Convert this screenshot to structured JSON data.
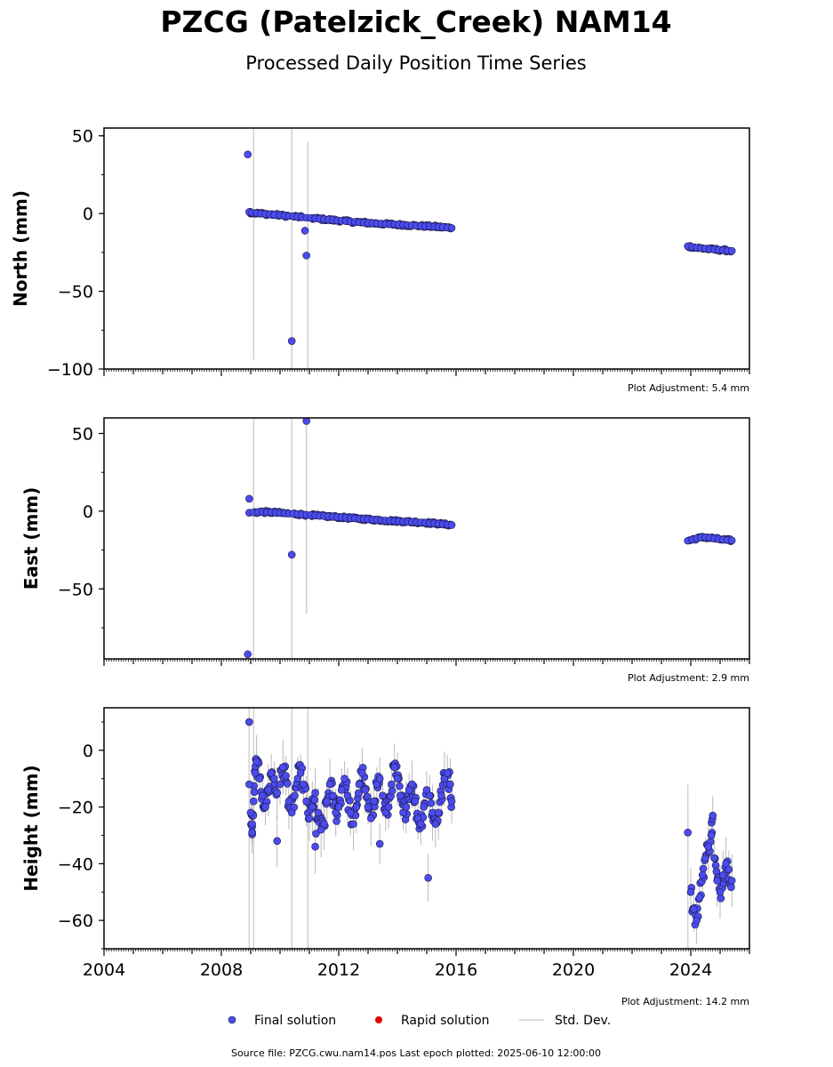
{
  "title": "PZCG (Patelzick_Creek) NAM14",
  "subtitle": "Processed Daily Position Time Series",
  "legend": {
    "final": "Final solution",
    "rapid": "Rapid solution",
    "stddev": "Std. Dev."
  },
  "footer": "Source file: PZCG.cwu.nam14.pos  Last epoch plotted: 2025-06-10 12:00:00",
  "colors": {
    "final": "#4b4bf0",
    "final_edge": "#1a1a40",
    "rapid": "#e00000",
    "stddev": "#b0b0b0"
  },
  "chart_data": [
    {
      "type": "scatter",
      "panel": "north",
      "ylabel": "North (mm)",
      "adjustment": "Plot Adjustment: 5.4 mm",
      "xlim": [
        2004,
        2026
      ],
      "ylim": [
        -100,
        55
      ],
      "yticks": [
        -100,
        -50,
        0,
        50
      ],
      "ytick_labels": [
        "−100",
        "−50",
        "0",
        "50"
      ],
      "xticks": [
        2004,
        2008,
        2012,
        2016,
        2020,
        2024
      ],
      "xtick_labels": [
        "",
        "",
        "",
        "",
        "",
        ""
      ],
      "series": [
        {
          "points": [
            [
              2008.95,
              1.0
            ],
            [
              2009.05,
              0.5
            ],
            [
              2009.2,
              0.2
            ],
            [
              2009.35,
              0.0
            ],
            [
              2009.5,
              -0.3
            ],
            [
              2009.65,
              -0.5
            ],
            [
              2009.8,
              -0.8
            ],
            [
              2010.0,
              -1.0
            ],
            [
              2010.15,
              -1.4
            ],
            [
              2010.3,
              -1.6
            ],
            [
              2010.45,
              -1.8
            ],
            [
              2010.6,
              -2.1
            ],
            [
              2010.75,
              -2.4
            ],
            [
              2010.9,
              -2.7
            ],
            [
              2011.05,
              -2.9
            ],
            [
              2011.2,
              -3.1
            ],
            [
              2011.35,
              -3.4
            ],
            [
              2011.5,
              -3.7
            ],
            [
              2011.65,
              -3.9
            ],
            [
              2011.8,
              -4.2
            ],
            [
              2011.95,
              -4.4
            ],
            [
              2012.1,
              -4.7
            ],
            [
              2012.25,
              -4.9
            ],
            [
              2012.4,
              -5.2
            ],
            [
              2012.55,
              -5.4
            ],
            [
              2012.7,
              -5.6
            ],
            [
              2012.85,
              -5.8
            ],
            [
              2013.0,
              -6.0
            ],
            [
              2013.15,
              -6.2
            ],
            [
              2013.3,
              -6.4
            ],
            [
              2013.45,
              -6.5
            ],
            [
              2013.6,
              -6.7
            ],
            [
              2013.75,
              -6.9
            ],
            [
              2013.9,
              -7.0
            ],
            [
              2014.05,
              -7.2
            ],
            [
              2014.2,
              -7.3
            ],
            [
              2014.35,
              -7.5
            ],
            [
              2014.5,
              -7.6
            ],
            [
              2014.65,
              -7.8
            ],
            [
              2014.8,
              -7.9
            ],
            [
              2014.95,
              -8.1
            ],
            [
              2015.1,
              -8.2
            ],
            [
              2015.25,
              -8.4
            ],
            [
              2015.4,
              -8.6
            ],
            [
              2015.55,
              -8.8
            ],
            [
              2015.7,
              -9.0
            ],
            [
              2015.85,
              -9.3
            ],
            [
              2008.9,
              38.0
            ],
            [
              2010.85,
              -11.0
            ],
            [
              2010.9,
              -27.0
            ],
            [
              2010.4,
              -82.0
            ],
            [
              2023.9,
              -21.0
            ],
            [
              2024.05,
              -21.5
            ],
            [
              2024.2,
              -22.0
            ],
            [
              2024.35,
              -22.3
            ],
            [
              2024.5,
              -22.6
            ],
            [
              2024.65,
              -22.9
            ],
            [
              2024.8,
              -23.1
            ],
            [
              2024.95,
              -23.3
            ],
            [
              2025.1,
              -23.5
            ],
            [
              2025.25,
              -23.8
            ],
            [
              2025.4,
              -24.0
            ]
          ]
        },
        {
          "errors": [
            [
              2009.1,
              -94,
              55
            ],
            [
              2010.4,
              -100,
              55
            ],
            [
              2010.95,
              -100,
              46
            ]
          ]
        }
      ]
    },
    {
      "type": "scatter",
      "panel": "east",
      "ylabel": "East (mm)",
      "adjustment": "Plot Adjustment: 2.9 mm",
      "xlim": [
        2004,
        2026
      ],
      "ylim": [
        -95,
        60
      ],
      "yticks": [
        -50,
        0,
        50
      ],
      "ytick_labels": [
        "−50",
        "0",
        "50"
      ],
      "xticks": [
        2004,
        2008,
        2012,
        2016,
        2020,
        2024
      ],
      "xtick_labels": [
        "",
        "",
        "",
        "",
        "",
        ""
      ],
      "series": [
        {
          "points": [
            [
              2008.95,
              -1.0
            ],
            [
              2009.1,
              -0.8
            ],
            [
              2009.25,
              -0.6
            ],
            [
              2009.4,
              -0.5
            ],
            [
              2009.55,
              -0.6
            ],
            [
              2009.7,
              -0.7
            ],
            [
              2009.85,
              -0.9
            ],
            [
              2010.0,
              -1.1
            ],
            [
              2010.15,
              -1.3
            ],
            [
              2010.3,
              -1.5
            ],
            [
              2010.45,
              -1.7
            ],
            [
              2010.6,
              -1.9
            ],
            [
              2010.75,
              -2.1
            ],
            [
              2010.9,
              -2.3
            ],
            [
              2011.05,
              -2.5
            ],
            [
              2011.2,
              -2.8
            ],
            [
              2011.35,
              -3.0
            ],
            [
              2011.5,
              -3.2
            ],
            [
              2011.65,
              -3.4
            ],
            [
              2011.8,
              -3.6
            ],
            [
              2011.95,
              -3.8
            ],
            [
              2012.1,
              -4.0
            ],
            [
              2012.25,
              -4.2
            ],
            [
              2012.4,
              -4.4
            ],
            [
              2012.55,
              -4.6
            ],
            [
              2012.7,
              -4.8
            ],
            [
              2012.85,
              -5.0
            ],
            [
              2013.0,
              -5.2
            ],
            [
              2013.15,
              -5.4
            ],
            [
              2013.3,
              -5.6
            ],
            [
              2013.45,
              -5.8
            ],
            [
              2013.6,
              -6.0
            ],
            [
              2013.75,
              -6.1
            ],
            [
              2013.9,
              -6.3
            ],
            [
              2014.05,
              -6.4
            ],
            [
              2014.2,
              -6.6
            ],
            [
              2014.35,
              -6.7
            ],
            [
              2014.5,
              -6.9
            ],
            [
              2014.65,
              -7.0
            ],
            [
              2014.8,
              -7.2
            ],
            [
              2014.95,
              -7.4
            ],
            [
              2015.1,
              -7.6
            ],
            [
              2015.25,
              -7.8
            ],
            [
              2015.4,
              -8.0
            ],
            [
              2015.55,
              -8.3
            ],
            [
              2015.7,
              -8.6
            ],
            [
              2015.85,
              -8.9
            ],
            [
              2008.95,
              8.0
            ],
            [
              2010.4,
              -28.0
            ],
            [
              2010.9,
              58.0
            ],
            [
              2008.9,
              -92.0
            ],
            [
              2023.9,
              -19.0
            ],
            [
              2024.05,
              -18.2
            ],
            [
              2024.2,
              -17.5
            ],
            [
              2024.35,
              -17.0
            ],
            [
              2024.5,
              -16.8
            ],
            [
              2024.65,
              -17.1
            ],
            [
              2024.8,
              -17.5
            ],
            [
              2024.95,
              -18.0
            ],
            [
              2025.1,
              -18.3
            ],
            [
              2025.25,
              -18.6
            ],
            [
              2025.4,
              -18.8
            ]
          ]
        },
        {
          "errors": [
            [
              2009.1,
              -95,
              60
            ],
            [
              2010.4,
              -95,
              60
            ],
            [
              2010.9,
              -66,
              60
            ]
          ]
        }
      ]
    },
    {
      "type": "scatter",
      "panel": "height",
      "ylabel": "Height (mm)",
      "adjustment": "Plot Adjustment: 14.2 mm",
      "xlim": [
        2004,
        2026
      ],
      "ylim": [
        -70,
        15
      ],
      "yticks": [
        -60,
        -40,
        -20,
        0
      ],
      "ytick_labels": [
        "−60",
        "−40",
        "−20",
        "0"
      ],
      "xticks": [
        2004,
        2008,
        2012,
        2016,
        2020,
        2024
      ],
      "xtick_labels": [
        "2004",
        "2008",
        "2012",
        "2016",
        "2020",
        "2024"
      ],
      "series": [
        {
          "points": [
            [
              2008.95,
              -12
            ],
            [
              2009.0,
              -22
            ],
            [
              2009.05,
              -26
            ],
            [
              2009.1,
              -18
            ],
            [
              2009.15,
              -8
            ],
            [
              2009.2,
              -4
            ],
            [
              2009.3,
              -10
            ],
            [
              2009.4,
              -16
            ],
            [
              2009.5,
              -20
            ],
            [
              2009.6,
              -14
            ],
            [
              2009.7,
              -8
            ],
            [
              2009.8,
              -10
            ],
            [
              2009.9,
              -15
            ],
            [
              2010.0,
              -12
            ],
            [
              2010.1,
              -6
            ],
            [
              2010.2,
              -9
            ],
            [
              2010.3,
              -18
            ],
            [
              2010.4,
              -22
            ],
            [
              2010.5,
              -16
            ],
            [
              2010.6,
              -10
            ],
            [
              2010.7,
              -8
            ],
            [
              2010.8,
              -12
            ],
            [
              2010.9,
              -18
            ],
            [
              2011.0,
              -24
            ],
            [
              2011.1,
              -20
            ],
            [
              2011.2,
              -15
            ],
            [
              2011.3,
              -22
            ],
            [
              2011.4,
              -28
            ],
            [
              2011.5,
              -26
            ],
            [
              2011.6,
              -18
            ],
            [
              2011.7,
              -12
            ],
            [
              2011.8,
              -16
            ],
            [
              2011.9,
              -22
            ],
            [
              2012.0,
              -20
            ],
            [
              2012.1,
              -14
            ],
            [
              2012.2,
              -10
            ],
            [
              2012.3,
              -16
            ],
            [
              2012.4,
              -22
            ],
            [
              2012.5,
              -26
            ],
            [
              2012.6,
              -20
            ],
            [
              2012.7,
              -12
            ],
            [
              2012.8,
              -8
            ],
            [
              2012.9,
              -14
            ],
            [
              2013.0,
              -20
            ],
            [
              2013.1,
              -24
            ],
            [
              2013.2,
              -18
            ],
            [
              2013.3,
              -12
            ],
            [
              2013.4,
              -10
            ],
            [
              2013.5,
              -16
            ],
            [
              2013.6,
              -22
            ],
            [
              2013.7,
              -20
            ],
            [
              2013.8,
              -12
            ],
            [
              2013.9,
              -6
            ],
            [
              2014.0,
              -10
            ],
            [
              2014.1,
              -16
            ],
            [
              2014.2,
              -22
            ],
            [
              2014.3,
              -20
            ],
            [
              2014.4,
              -14
            ],
            [
              2014.5,
              -12
            ],
            [
              2014.6,
              -18
            ],
            [
              2014.7,
              -24
            ],
            [
              2014.8,
              -26
            ],
            [
              2014.9,
              -20
            ],
            [
              2015.0,
              -14
            ],
            [
              2015.1,
              -16
            ],
            [
              2015.2,
              -22
            ],
            [
              2015.3,
              -26
            ],
            [
              2015.4,
              -22
            ],
            [
              2015.5,
              -16
            ],
            [
              2015.6,
              -10
            ],
            [
              2015.7,
              -8
            ],
            [
              2015.8,
              -12
            ],
            [
              2015.85,
              -18
            ],
            [
              2008.95,
              10
            ],
            [
              2009.05,
              -29
            ],
            [
              2009.9,
              -32
            ],
            [
              2011.2,
              -34
            ],
            [
              2013.4,
              -33
            ],
            [
              2015.05,
              -45
            ],
            [
              2023.9,
              -29
            ],
            [
              2024.0,
              -50
            ],
            [
              2024.1,
              -56
            ],
            [
              2024.2,
              -60
            ],
            [
              2024.3,
              -52
            ],
            [
              2024.4,
              -44
            ],
            [
              2024.5,
              -38
            ],
            [
              2024.6,
              -34
            ],
            [
              2024.7,
              -30
            ],
            [
              2024.75,
              -23
            ],
            [
              2024.8,
              -38
            ],
            [
              2024.9,
              -46
            ],
            [
              2025.0,
              -50
            ],
            [
              2025.1,
              -44
            ],
            [
              2025.2,
              -40
            ],
            [
              2025.3,
              -42
            ],
            [
              2025.4,
              -46
            ]
          ]
        },
        {
          "errors": [
            [
              2008.95,
              -70,
              15
            ],
            [
              2009.1,
              -70,
              15
            ],
            [
              2010.4,
              -70,
              15
            ],
            [
              2010.95,
              -70,
              15
            ],
            [
              2023.9,
              -70,
              -12
            ]
          ]
        }
      ]
    }
  ]
}
